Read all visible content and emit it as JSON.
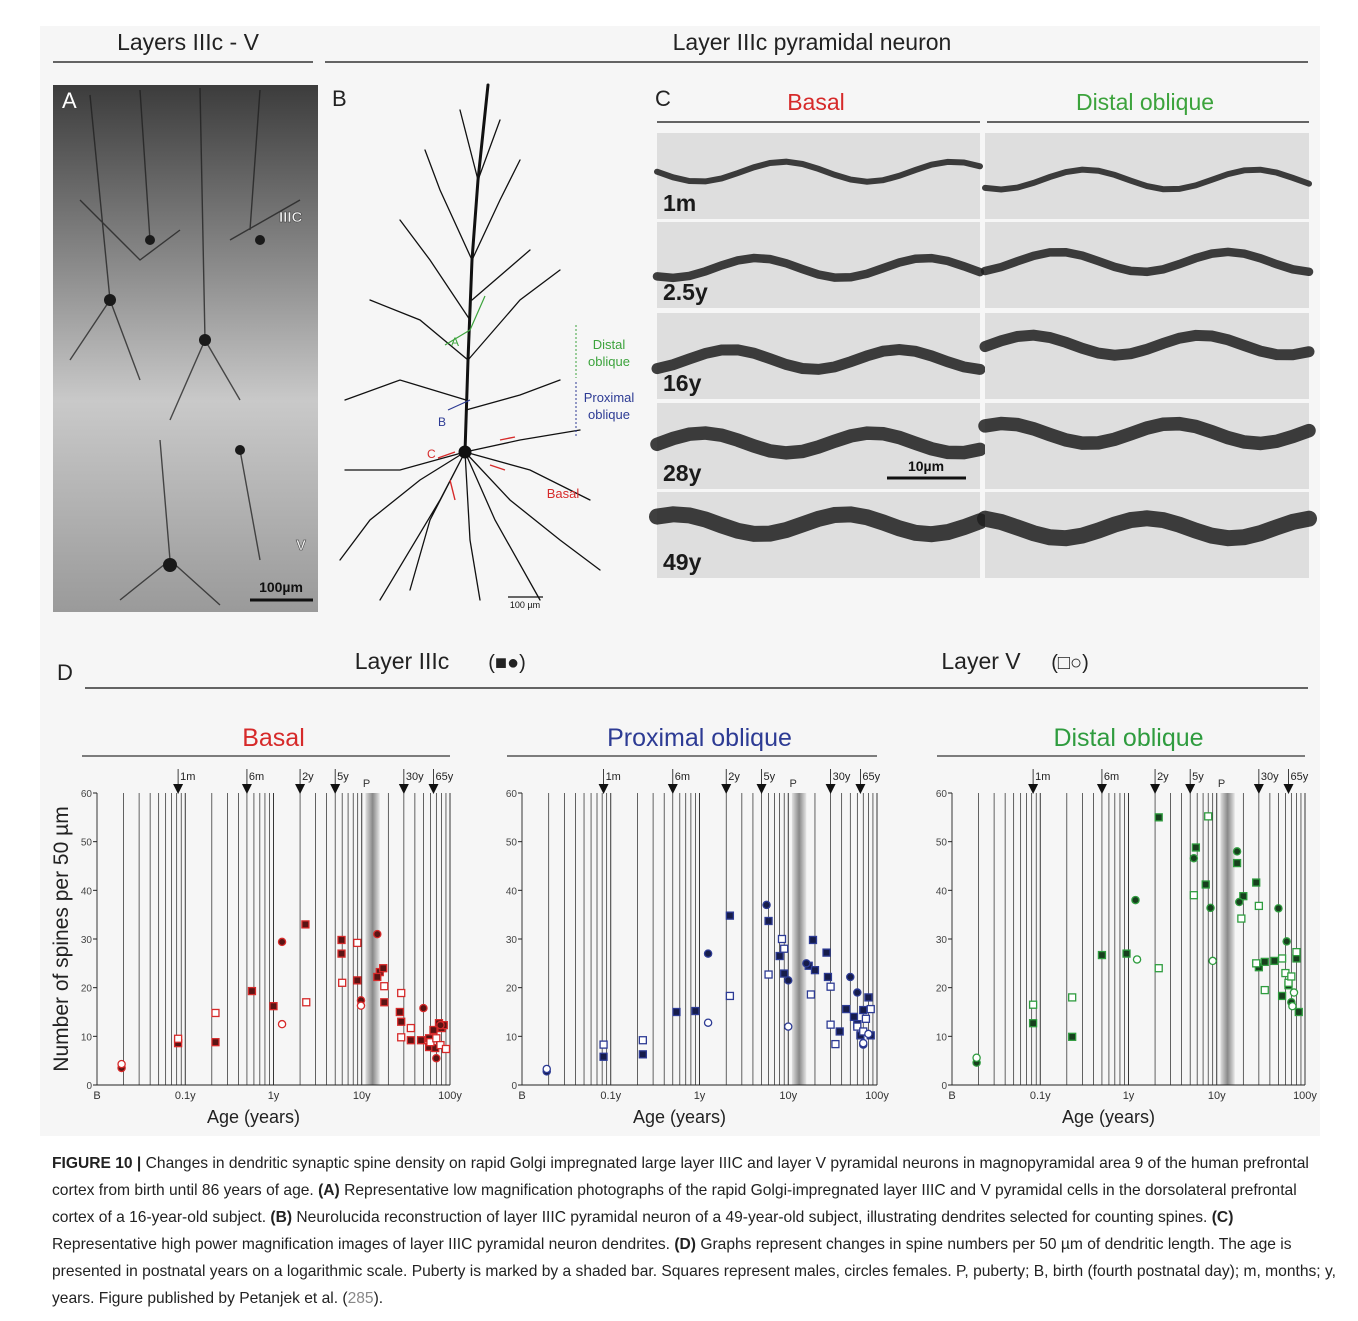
{
  "header": {
    "left": "Layers IIIc - V",
    "right": "Layer IIIc pyramidal neuron"
  },
  "panel_a": {
    "letter": "A",
    "layer_top": "IIIC",
    "layer_bottom": "V",
    "scale": "100µm"
  },
  "panel_b": {
    "letter": "B",
    "distal": [
      "Distal",
      "oblique"
    ],
    "proximal": [
      "Proximal",
      "oblique"
    ],
    "basal": "Basal",
    "mark_a": "A",
    "mark_b": "B",
    "mark_c": "C",
    "scale": "100 µm"
  },
  "panel_c": {
    "letter": "C",
    "left_title": "Basal",
    "right_title": "Distal oblique",
    "rows": [
      "1m",
      "2.5y",
      "16y",
      "28y",
      "49y"
    ],
    "scale": "10µm"
  },
  "panel_d": {
    "letter": "D",
    "left_group": "Layer IIIc",
    "left_symbols": "(■●)",
    "right_group": "Layer V",
    "right_symbols": "(□○)",
    "ylabel": "Number of spines per 50 µm"
  },
  "chart_data": [
    {
      "type": "scatter",
      "title": "Basal",
      "color": "#d62a2a",
      "fill_color": "#5b1414",
      "xlabel": "Age (years)",
      "xscale": "log",
      "xlim": [
        0.01,
        100
      ],
      "xticks": [
        {
          "value": 0.01,
          "label": "B"
        },
        {
          "value": 0.1,
          "label": "0.1y"
        },
        {
          "value": 1,
          "label": "1y"
        },
        {
          "value": 10,
          "label": "10y"
        },
        {
          "value": 100,
          "label": "100y"
        }
      ],
      "ylim": [
        0,
        60
      ],
      "yticks": [
        0,
        10,
        20,
        30,
        40,
        50,
        60
      ],
      "minor_grid": true,
      "markers": [
        {
          "value": 0.083,
          "label": "1m"
        },
        {
          "value": 0.5,
          "label": "6m"
        },
        {
          "value": 2,
          "label": "2y"
        },
        {
          "value": 5,
          "label": "5y"
        },
        {
          "value": 30,
          "label": "30y"
        },
        {
          "value": 65,
          "label": "65y"
        }
      ],
      "puberty": {
        "label": "P",
        "range": [
          11,
          16
        ]
      },
      "series": [
        {
          "marker": "square",
          "filled": true,
          "x": [
            0.083,
            0.22,
            0.57,
            1.0,
            2.3,
            5.9,
            5.9,
            8.9,
            16,
            17.5,
            15,
            18,
            27,
            28,
            36,
            47,
            58,
            58,
            65,
            68,
            75,
            80,
            85
          ],
          "values": [
            8.6,
            8.8,
            19.3,
            16.2,
            33,
            29.8,
            27,
            21.5,
            23.2,
            24,
            22.2,
            17,
            15,
            13,
            9.2,
            9.2,
            9.6,
            7.8,
            11.3,
            7.6,
            12.7,
            11.7,
            12.3
          ]
        },
        {
          "marker": "circle",
          "filled": true,
          "x": [
            0.019,
            1.25,
            9.8,
            15,
            50,
            70,
            78
          ],
          "values": [
            3.5,
            29.4,
            17.4,
            31,
            15.8,
            5.5,
            12.3
          ]
        },
        {
          "marker": "square",
          "filled": false,
          "x": [
            0.083,
            0.22,
            2.35,
            6,
            8.9,
            18,
            28,
            28,
            36,
            60,
            70,
            78,
            90
          ],
          "values": [
            9.5,
            14.8,
            17,
            21,
            29.2,
            20.3,
            18.9,
            9.8,
            11.7,
            8.8,
            9.6,
            8.2,
            7.4
          ]
        },
        {
          "marker": "circle",
          "filled": false,
          "x": [
            0.019,
            1.25,
            9.8
          ],
          "values": [
            4.3,
            12.5,
            16.3
          ]
        }
      ]
    },
    {
      "type": "scatter",
      "title": "Proximal oblique",
      "color": "#2d3b94",
      "fill_color": "#161c4a",
      "xlabel": "Age (years)",
      "xscale": "log",
      "xlim": [
        0.01,
        100
      ],
      "xticks": [
        {
          "value": 0.01,
          "label": "B"
        },
        {
          "value": 0.1,
          "label": "0.1y"
        },
        {
          "value": 1,
          "label": "1y"
        },
        {
          "value": 10,
          "label": "10y"
        },
        {
          "value": 100,
          "label": "100y"
        }
      ],
      "ylim": [
        0,
        60
      ],
      "yticks": [
        0,
        10,
        20,
        30,
        40,
        50,
        60
      ],
      "minor_grid": true,
      "markers": [
        {
          "value": 0.083,
          "label": "1m"
        },
        {
          "value": 0.5,
          "label": "6m"
        },
        {
          "value": 2,
          "label": "2y"
        },
        {
          "value": 5,
          "label": "5y"
        },
        {
          "value": 30,
          "label": "30y"
        },
        {
          "value": 65,
          "label": "65y"
        }
      ],
      "puberty": {
        "label": "P",
        "range": [
          11,
          16
        ]
      },
      "series": [
        {
          "marker": "square",
          "filled": true,
          "x": [
            0.083,
            0.23,
            0.55,
            0.9,
            2.2,
            6,
            8,
            9,
            17,
            19,
            20,
            27,
            28,
            38,
            45,
            55,
            60,
            65,
            70,
            80,
            85
          ],
          "values": [
            5.8,
            6.3,
            15,
            15.2,
            34.8,
            33.7,
            26.5,
            22.9,
            24.5,
            29.8,
            23.6,
            27.2,
            22.2,
            11,
            15.6,
            14,
            12.5,
            10.2,
            15.4,
            18,
            10.2
          ]
        },
        {
          "marker": "circle",
          "filled": true,
          "x": [
            0.019,
            1.25,
            5.7,
            10,
            16,
            50,
            60,
            70
          ],
          "values": [
            2.8,
            27,
            37,
            21.5,
            25,
            22.2,
            19,
            8.3
          ]
        },
        {
          "marker": "square",
          "filled": false,
          "x": [
            0.083,
            0.23,
            2.2,
            6,
            8.5,
            9,
            18,
            30,
            30,
            34,
            60,
            70,
            75,
            85
          ],
          "values": [
            8.3,
            9.2,
            18.3,
            22.7,
            30,
            28,
            18.6,
            20.2,
            12.4,
            8.4,
            12,
            11,
            13.6,
            15.6
          ]
        },
        {
          "marker": "circle",
          "filled": false,
          "x": [
            0.019,
            1.25,
            10,
            70,
            80
          ],
          "values": [
            3.3,
            12.8,
            12,
            8.6,
            10.5
          ]
        }
      ]
    },
    {
      "type": "scatter",
      "title": "Distal oblique",
      "color": "#2f9c3f",
      "fill_color": "#173f1d",
      "xlabel": "Age (years)",
      "xscale": "log",
      "xlim": [
        0.01,
        100
      ],
      "xticks": [
        {
          "value": 0.01,
          "label": "B"
        },
        {
          "value": 0.1,
          "label": "0.1y"
        },
        {
          "value": 1,
          "label": "1y"
        },
        {
          "value": 10,
          "label": "10y"
        },
        {
          "value": 100,
          "label": "100y"
        }
      ],
      "ylim": [
        0,
        60
      ],
      "yticks": [
        0,
        10,
        20,
        30,
        40,
        50,
        60
      ],
      "minor_grid": true,
      "markers": [
        {
          "value": 0.083,
          "label": "1m"
        },
        {
          "value": 0.5,
          "label": "6m"
        },
        {
          "value": 2,
          "label": "2y"
        },
        {
          "value": 5,
          "label": "5y"
        },
        {
          "value": 30,
          "label": "30y"
        },
        {
          "value": 65,
          "label": "65y"
        }
      ],
      "puberty": {
        "label": "P",
        "range": [
          11,
          16
        ]
      },
      "series": [
        {
          "marker": "square",
          "filled": true,
          "x": [
            0.083,
            0.23,
            0.5,
            0.95,
            2.2,
            5.8,
            7.5,
            17,
            20,
            28,
            30,
            35,
            45,
            55,
            65,
            80,
            85
          ],
          "values": [
            12.7,
            9.9,
            26.7,
            27,
            55,
            48.8,
            41.2,
            45.6,
            38.8,
            41.6,
            24.2,
            25.3,
            25.5,
            18.3,
            20.5,
            26,
            15
          ]
        },
        {
          "marker": "circle",
          "filled": true,
          "x": [
            0.019,
            1.2,
            5.5,
            8.5,
            17,
            18,
            50,
            62,
            70
          ],
          "values": [
            4.6,
            38,
            46.6,
            36.4,
            48,
            37.6,
            36.3,
            29.5,
            17
          ]
        },
        {
          "marker": "square",
          "filled": false,
          "x": [
            0.083,
            0.23,
            2.2,
            5.5,
            8,
            19,
            28,
            30,
            35,
            55,
            60,
            65,
            70,
            80
          ],
          "values": [
            16.5,
            18,
            24,
            39,
            55.2,
            34.2,
            25,
            36.8,
            19.5,
            26,
            23,
            21,
            22.3,
            27.3
          ]
        },
        {
          "marker": "circle",
          "filled": false,
          "x": [
            0.019,
            1.25,
            9,
            72,
            75
          ],
          "values": [
            5.6,
            25.8,
            25.5,
            16.2,
            19
          ]
        }
      ]
    }
  ],
  "caption": [
    {
      "text": "FIGURE 10 |",
      "bold": true
    },
    {
      "text": " Changes in dendritic synaptic spine density on rapid Golgi impregnated large layer IIIC and layer V pyramidal neurons in magnopyramidal area 9 of the human prefrontal cortex from birth until 86 years of age. "
    },
    {
      "text": "(A)",
      "bold": true
    },
    {
      "text": " Representative low magnification photographs of the rapid Golgi-impregnated layer IIIC and V pyramidal cells in the dorsolateral prefrontal cortex of a 16-year-old subject. "
    },
    {
      "text": "(B)",
      "bold": true
    },
    {
      "text": " Neurolucida reconstruction of layer IIIC pyramidal neuron of a 49-year-old subject, illustrating dendrites selected for counting spines. "
    },
    {
      "text": "(C)",
      "bold": true
    },
    {
      "text": " Representative high power magnification images of layer IIIC pyramidal neuron dendrites. "
    },
    {
      "text": "(D)",
      "bold": true
    },
    {
      "text": " Graphs represent changes in spine numbers per 50 µm of dendritic length. The age is presented in postnatal years on a logarithmic scale. Puberty is marked by a shaded bar. Squares represent males, circles females. P, puberty; B, birth (fourth postnatal day); m, months; y, years. Figure published by Petanjek et al. ("
    },
    {
      "text": "285",
      "link": true
    },
    {
      "text": ")."
    }
  ]
}
